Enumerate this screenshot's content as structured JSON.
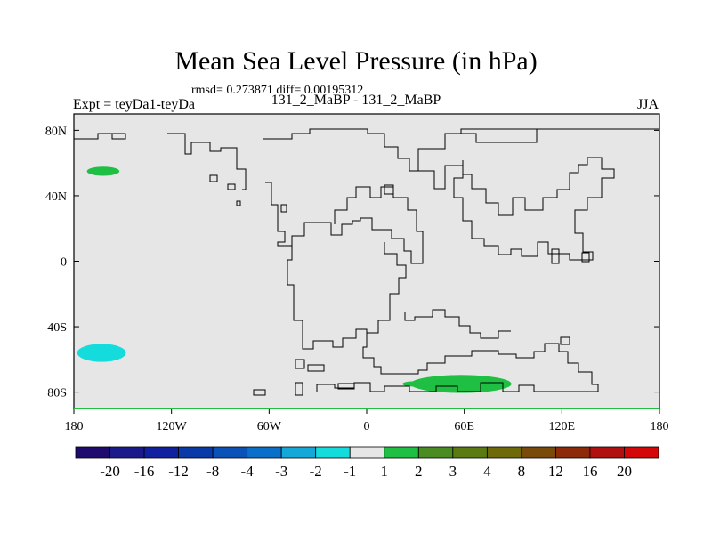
{
  "title": "Mean Sea Level Pressure (in hPa)",
  "stats": "rmsd= 0.273871 diff= 0.00195312",
  "left_label": "Expt = teyDa1-teyDa",
  "center_label": "131_2_MaBP - 131_2_MaBP",
  "right_label": "JJA",
  "chart_data": {
    "type": "heatmap",
    "projection": "cylindrical-equidistant",
    "lon_range": [
      -180,
      180
    ],
    "lat_range": [
      -90,
      90
    ],
    "x_ticks": [
      {
        "lon": -180,
        "label": "180"
      },
      {
        "lon": -120,
        "label": "120W"
      },
      {
        "lon": -60,
        "label": "60W"
      },
      {
        "lon": 0,
        "label": "0"
      },
      {
        "lon": 60,
        "label": "60E"
      },
      {
        "lon": 120,
        "label": "120E"
      },
      {
        "lon": 180,
        "label": "180"
      }
    ],
    "y_ticks": [
      {
        "lat": 80,
        "label": "80N"
      },
      {
        "lat": 40,
        "label": "40N"
      },
      {
        "lat": 0,
        "label": "0"
      },
      {
        "lat": -40,
        "label": "40S"
      },
      {
        "lat": -80,
        "label": "80S"
      }
    ],
    "colorbar": {
      "levels": [
        "-20",
        "-16",
        "-12",
        "-8",
        "-4",
        "-3",
        "-2",
        "-1",
        "1",
        "2",
        "3",
        "4",
        "8",
        "12",
        "16",
        "20"
      ],
      "colors": [
        "#1f0a6e",
        "#1a1a8c",
        "#10209e",
        "#0a3aa8",
        "#0a52b8",
        "#0a6fc8",
        "#14a8d8",
        "#14dcdc",
        "#e6e6e6",
        "#1fbf44",
        "#4a8c22",
        "#5a7a12",
        "#6e6a0a",
        "#7a4a0a",
        "#8c2a0a",
        "#b01010",
        "#d40808"
      ]
    },
    "anomalies": [
      {
        "name": "north-pacific-positive",
        "lon_center": -162,
        "lat_center": 55,
        "lon_radius": 10,
        "lat_radius": 2.8,
        "color": "#1fbf44",
        "range": "1 to 2"
      },
      {
        "name": "south-pacific-negative",
        "lon_center": -163,
        "lat_center": -56,
        "lon_radius": 15,
        "lat_radius": 5.5,
        "color": "#14dcdc",
        "range": "-2 to -1"
      },
      {
        "name": "southern-ocean-positive",
        "lon_center": 58,
        "lat_center": -75,
        "lon_radius": 31,
        "lat_radius": 5.5,
        "color": "#1fbf44",
        "range": "1 to 2"
      },
      {
        "name": "southern-ocean-positive-tail",
        "lon_center": 28,
        "lat_center": -75,
        "lon_radius": 6,
        "lat_radius": 1.6,
        "color": "#1fbf44",
        "range": "1 to 2"
      }
    ]
  }
}
